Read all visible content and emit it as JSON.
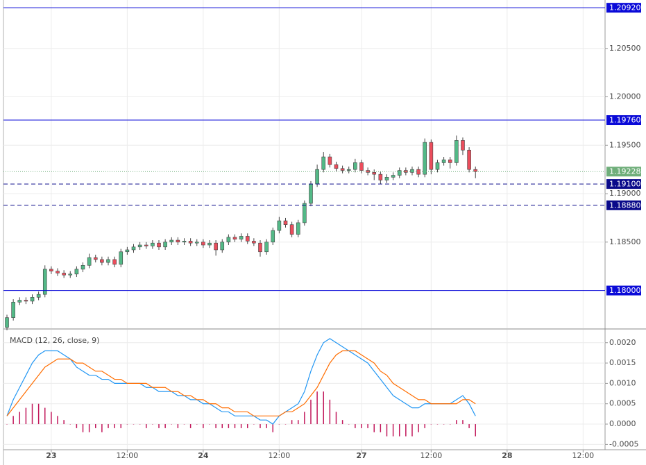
{
  "chart_data": [
    {
      "type": "candlestick",
      "x": [
        0,
        1,
        2,
        3,
        4,
        5,
        6,
        7,
        8,
        9,
        10,
        11,
        12,
        13,
        14,
        15,
        16,
        17,
        18,
        19,
        20,
        21,
        22,
        23,
        24,
        25,
        26,
        27,
        28,
        29,
        30,
        31,
        32,
        33,
        34,
        35,
        36,
        37,
        38,
        39,
        40,
        41,
        42,
        43,
        44,
        45,
        46,
        47,
        48,
        49,
        50,
        51,
        52,
        53,
        54,
        55,
        56,
        57,
        58,
        59,
        60,
        61,
        62,
        63,
        64,
        65,
        66,
        67,
        68,
        69,
        70,
        71,
        72,
        73,
        74
      ],
      "open": [
        1.1762,
        1.1772,
        1.1788,
        1.179,
        1.1789,
        1.1793,
        1.1796,
        1.1822,
        1.182,
        1.1818,
        1.1816,
        1.1817,
        1.1822,
        1.1826,
        1.1834,
        1.1832,
        1.1829,
        1.1832,
        1.1827,
        1.184,
        1.1842,
        1.1845,
        1.1847,
        1.1846,
        1.1849,
        1.1845,
        1.185,
        1.1852,
        1.185,
        1.1851,
        1.1849,
        1.185,
        1.1847,
        1.1849,
        1.1842,
        1.185,
        1.1855,
        1.1853,
        1.1856,
        1.1851,
        1.1849,
        1.184,
        1.185,
        1.1862,
        1.1872,
        1.1868,
        1.1858,
        1.187,
        1.189,
        1.191,
        1.1925,
        1.1938,
        1.193,
        1.1926,
        1.1924,
        1.1925,
        1.1932,
        1.1924,
        1.1922,
        1.192,
        1.1914,
        1.1917,
        1.1919,
        1.1924,
        1.1922,
        1.1925,
        1.192,
        1.1953,
        1.1925,
        1.1932,
        1.1935,
        1.1932,
        1.1955,
        1.1945,
        1.1925
      ],
      "high": [
        1.1775,
        1.1791,
        1.1793,
        1.1793,
        1.1796,
        1.1799,
        1.1826,
        1.1825,
        1.1823,
        1.1821,
        1.182,
        1.1825,
        1.1829,
        1.1838,
        1.1837,
        1.1835,
        1.1835,
        1.1835,
        1.1843,
        1.1845,
        1.1848,
        1.185,
        1.185,
        1.1852,
        1.1852,
        1.1853,
        1.1855,
        1.1855,
        1.1854,
        1.1854,
        1.1853,
        1.1853,
        1.1852,
        1.1852,
        1.1853,
        1.1858,
        1.1858,
        1.1859,
        1.1859,
        1.1854,
        1.1852,
        1.1853,
        1.1865,
        1.1876,
        1.1875,
        1.1871,
        1.1873,
        1.1893,
        1.1913,
        1.193,
        1.1943,
        1.1941,
        1.1933,
        1.1929,
        1.1928,
        1.1936,
        1.1935,
        1.1927,
        1.1925,
        1.1923,
        1.192,
        1.1922,
        1.1927,
        1.1927,
        1.1928,
        1.1928,
        1.1957,
        1.1956,
        1.1935,
        1.1938,
        1.1938,
        1.196,
        1.1958,
        1.1948,
        1.1928
      ],
      "low": [
        1.1759,
        1.1769,
        1.1785,
        1.1786,
        1.1786,
        1.179,
        1.1793,
        1.1817,
        1.1815,
        1.1813,
        1.1813,
        1.1814,
        1.1819,
        1.1823,
        1.1829,
        1.1826,
        1.1826,
        1.1824,
        1.1824,
        1.1837,
        1.1839,
        1.1842,
        1.1843,
        1.1843,
        1.1842,
        1.1842,
        1.1847,
        1.1847,
        1.1847,
        1.1846,
        1.1846,
        1.1844,
        1.1844,
        1.1836,
        1.1839,
        1.1847,
        1.185,
        1.185,
        1.1848,
        1.1846,
        1.1835,
        1.1837,
        1.1847,
        1.1859,
        1.1865,
        1.1855,
        1.1855,
        1.1867,
        1.1887,
        1.1907,
        1.1922,
        1.1927,
        1.1923,
        1.1921,
        1.1921,
        1.1922,
        1.1921,
        1.1919,
        1.1914,
        1.191,
        1.1911,
        1.1914,
        1.1916,
        1.1919,
        1.1919,
        1.1917,
        1.1917,
        1.192,
        1.1922,
        1.1929,
        1.1926,
        1.1929,
        1.194,
        1.1922,
        1.1916
      ],
      "close": [
        1.1772,
        1.1788,
        1.179,
        1.1789,
        1.1793,
        1.1796,
        1.1822,
        1.182,
        1.1818,
        1.1816,
        1.1817,
        1.1822,
        1.1826,
        1.1834,
        1.1832,
        1.1829,
        1.1832,
        1.1827,
        1.184,
        1.1842,
        1.1845,
        1.1847,
        1.1846,
        1.1849,
        1.1845,
        1.185,
        1.1852,
        1.185,
        1.1851,
        1.1849,
        1.185,
        1.1847,
        1.1849,
        1.1842,
        1.185,
        1.1855,
        1.1853,
        1.1856,
        1.1851,
        1.1849,
        1.184,
        1.185,
        1.1862,
        1.1872,
        1.1868,
        1.1858,
        1.187,
        1.189,
        1.191,
        1.1925,
        1.1938,
        1.193,
        1.1926,
        1.1924,
        1.1925,
        1.1932,
        1.1924,
        1.1922,
        1.192,
        1.1914,
        1.1917,
        1.1919,
        1.1924,
        1.1922,
        1.1925,
        1.192,
        1.1953,
        1.1925,
        1.1932,
        1.1935,
        1.1932,
        1.1955,
        1.1945,
        1.1925,
        1.19228
      ],
      "up_color": "#53b987",
      "down_color": "#eb4d5c",
      "xlim": [
        -0.55,
        94.47
      ],
      "ylim": [
        1.1761,
        1.21
      ],
      "yticks": [
        {
          "value": 1.205,
          "label": "1.20500"
        },
        {
          "value": 1.2,
          "label": "1.20000"
        },
        {
          "value": 1.195,
          "label": "1.19500"
        },
        {
          "value": 1.19,
          "label": "1.19000"
        },
        {
          "value": 1.185,
          "label": "1.18500"
        }
      ],
      "grid": true,
      "price_lines": [
        {
          "value": 1.2092,
          "label": "1.20920",
          "style": "solid",
          "color": "#0a0ad8"
        },
        {
          "value": 1.1976,
          "label": "1.19760",
          "style": "solid",
          "color": "#0a0ad8"
        },
        {
          "value": 1.19228,
          "label": "1.19228",
          "style": "dotted",
          "color": "#6fae7a"
        },
        {
          "value": 1.191,
          "label": "1.19100",
          "style": "dashed",
          "color": "#0a0a8a"
        },
        {
          "value": 1.1888,
          "label": "1.18880",
          "style": "dashed",
          "color": "#0a0a8a"
        },
        {
          "value": 1.18,
          "label": "1.18000",
          "style": "solid",
          "color": "#0a0ad8"
        }
      ]
    },
    {
      "type": "macd",
      "title": "MACD (12, 26, close, 9)",
      "x": [
        0,
        1,
        2,
        3,
        4,
        5,
        6,
        7,
        8,
        9,
        10,
        11,
        12,
        13,
        14,
        15,
        16,
        17,
        18,
        19,
        20,
        21,
        22,
        23,
        24,
        25,
        26,
        27,
        28,
        29,
        30,
        31,
        32,
        33,
        34,
        35,
        36,
        37,
        38,
        39,
        40,
        41,
        42,
        43,
        44,
        45,
        46,
        47,
        48,
        49,
        50,
        51,
        52,
        53,
        54,
        55,
        56,
        57,
        58,
        59,
        60,
        61,
        62,
        63,
        64,
        65,
        66,
        67,
        68,
        69,
        70,
        71,
        72,
        73,
        74
      ],
      "xlim": [
        -0.55,
        94.47
      ],
      "ylim": [
        -0.00063,
        0.00232
      ],
      "xticks": [
        {
          "value": 7,
          "label": "23"
        },
        {
          "value": 19,
          "label": "12:00"
        },
        {
          "value": 31,
          "label": "24"
        },
        {
          "value": 43,
          "label": "12:00"
        },
        {
          "value": 56,
          "label": "27"
        },
        {
          "value": 67,
          "label": "12:00"
        },
        {
          "value": 79,
          "label": "28"
        },
        {
          "value": 91,
          "label": "12:00"
        }
      ],
      "yticks": [
        {
          "value": 0.002,
          "label": "0.0020"
        },
        {
          "value": 0.0015,
          "label": "0.0015"
        },
        {
          "value": 0.001,
          "label": "0.0010"
        },
        {
          "value": 0.0005,
          "label": "0.0005"
        },
        {
          "value": 0,
          "label": "0.0000"
        },
        {
          "value": -0.0005,
          "label": "-0.0005"
        }
      ],
      "grid": true,
      "series": [
        {
          "style": "bar",
          "color": "#c2185b",
          "values": [
            0,
            0.0002,
            0.0003,
            0.0004,
            0.0005,
            0.0005,
            0.0004,
            0.0003,
            0.0002,
            0.0001,
            0,
            -0.0001,
            -0.0002,
            -0.0002,
            -0.0001,
            -0.0002,
            -0.0001,
            -0.0001,
            -0.0001,
            0,
            0,
            0,
            -0.0001,
            0,
            -0.0001,
            -0.0001,
            0,
            -0.0001,
            0,
            -0.0001,
            0,
            -0.0001,
            0,
            -0.0001,
            -0.0001,
            -0.0001,
            -0.0001,
            -0.0001,
            -0.0001,
            0,
            -0.0001,
            -0.0001,
            -0.0002,
            0,
            0,
            0.0001,
            0.0001,
            0.0003,
            0.0006,
            0.0008,
            0.0008,
            0.0006,
            0.0003,
            0.0001,
            0,
            -0.0001,
            -0.0001,
            -0.0001,
            -0.0002,
            -0.0002,
            -0.0003,
            -0.0003,
            -0.0003,
            -0.0003,
            -0.0003,
            -0.0002,
            -0.0001,
            0,
            0,
            0,
            0,
            0.0001,
            0.0001,
            -0.0001,
            -0.0003
          ]
        },
        {
          "style": "line",
          "color": "#2196f3",
          "values": [
            0.0002,
            0.0006,
            0.0009,
            0.0012,
            0.0015,
            0.0017,
            0.0018,
            0.0018,
            0.0018,
            0.0017,
            0.0016,
            0.0014,
            0.0013,
            0.0012,
            0.0012,
            0.0011,
            0.0011,
            0.001,
            0.001,
            0.001,
            0.001,
            0.001,
            0.0009,
            0.0009,
            0.0008,
            0.0008,
            0.0008,
            0.0007,
            0.0007,
            0.0006,
            0.0006,
            0.0005,
            0.0005,
            0.0004,
            0.0003,
            0.0003,
            0.0002,
            0.0002,
            0.0002,
            0.0002,
            0.0001,
            0.0001,
            0,
            0.0002,
            0.0003,
            0.0004,
            0.0005,
            0.0008,
            0.0013,
            0.0017,
            0.002,
            0.0021,
            0.002,
            0.0019,
            0.0018,
            0.0017,
            0.0016,
            0.0015,
            0.0013,
            0.0011,
            0.0009,
            0.0007,
            0.0006,
            0.0005,
            0.0004,
            0.0004,
            0.0005,
            0.0005,
            0.0005,
            0.0005,
            0.0005,
            0.0006,
            0.0007,
            0.0005,
            0.0002
          ]
        },
        {
          "style": "line",
          "color": "#ff6d00",
          "values": [
            0.0002,
            0.0004,
            0.0006,
            0.0008,
            0.001,
            0.0012,
            0.0014,
            0.0015,
            0.0016,
            0.0016,
            0.0016,
            0.0015,
            0.0015,
            0.0014,
            0.0013,
            0.0013,
            0.0012,
            0.0011,
            0.0011,
            0.001,
            0.001,
            0.001,
            0.001,
            0.0009,
            0.0009,
            0.0009,
            0.0008,
            0.0008,
            0.0007,
            0.0007,
            0.0006,
            0.0006,
            0.0005,
            0.0005,
            0.0004,
            0.0004,
            0.0003,
            0.0003,
            0.0003,
            0.0002,
            0.0002,
            0.0002,
            0.0002,
            0.0002,
            0.0003,
            0.0003,
            0.0004,
            0.0005,
            0.0007,
            0.0009,
            0.0012,
            0.0015,
            0.0017,
            0.0018,
            0.0018,
            0.0018,
            0.0017,
            0.0016,
            0.0015,
            0.0013,
            0.0012,
            0.001,
            0.0009,
            0.0008,
            0.0007,
            0.0006,
            0.0006,
            0.0005,
            0.0005,
            0.0005,
            0.0005,
            0.0005,
            0.0006,
            0.0006,
            0.0005
          ]
        }
      ]
    }
  ]
}
